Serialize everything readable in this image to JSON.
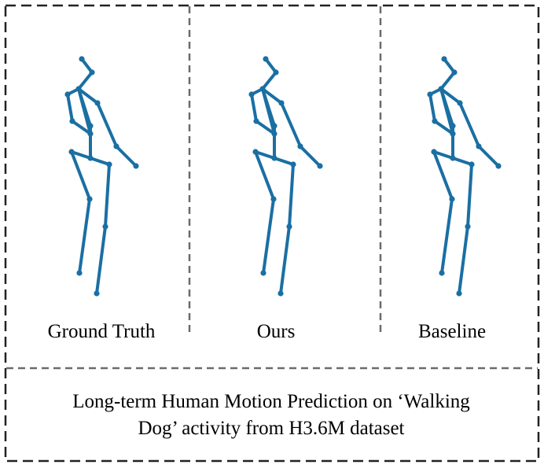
{
  "colors": {
    "skeleton": "#1a6fa3",
    "frame": "#222222",
    "divider": "#6b6b6b",
    "background": "#ffffff"
  },
  "panels": [
    {
      "id": "ground-truth",
      "label": "Ground Truth"
    },
    {
      "id": "ours",
      "label": "Ours"
    },
    {
      "id": "baseline",
      "label": "Baseline"
    }
  ],
  "caption": {
    "line1": "Long-term Human Motion Prediction on ‘Walking",
    "line2": "Dog’ activity from H3.6M dataset"
  }
}
